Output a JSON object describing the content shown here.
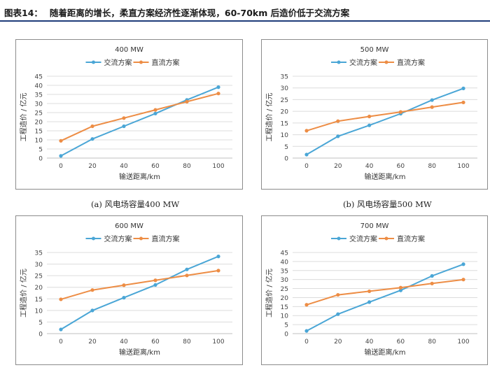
{
  "figure": {
    "label": "图表14：",
    "title": "随着距离的增长，柔直方案经济性逐渐体现，60-70km 后造价低于交流方案"
  },
  "colors": {
    "ac": "#4aa6d6",
    "dc": "#ed8d45",
    "grid": "#dcdcdc",
    "axis": "#bfbfbf"
  },
  "captions": [
    "(a) 风电场容量400 MW",
    "(b) 风电场容量500 MW"
  ],
  "chart_data": [
    {
      "type": "line",
      "title": "400 MW",
      "xlabel": "输送距离/km",
      "ylabel": "工程造价 / 亿元",
      "x": [
        0,
        20,
        40,
        60,
        80,
        100
      ],
      "ylim": [
        0,
        45
      ],
      "yticks": [
        0,
        5,
        10,
        15,
        20,
        25,
        30,
        35,
        40,
        45
      ],
      "legend": "top",
      "grid": true,
      "series": [
        {
          "name": "交流方案",
          "values": [
            1.2,
            10.5,
            17.5,
            24.5,
            32.0,
            39.0
          ]
        },
        {
          "name": "直流方案",
          "values": [
            9.5,
            17.5,
            22.0,
            26.5,
            31.0,
            35.5
          ]
        }
      ]
    },
    {
      "type": "line",
      "title": "500 MW",
      "xlabel": "输送距离/km",
      "ylabel": "工程造价 / 亿元",
      "x": [
        0,
        20,
        40,
        60,
        80,
        100
      ],
      "ylim": [
        0,
        35
      ],
      "yticks": [
        0,
        5,
        10,
        15,
        20,
        25,
        30,
        35
      ],
      "legend": "top",
      "grid": true,
      "series": [
        {
          "name": "交流方案",
          "values": [
            1.5,
            9.3,
            14.0,
            19.0,
            24.8,
            29.8
          ]
        },
        {
          "name": "直流方案",
          "values": [
            11.7,
            15.8,
            17.8,
            19.7,
            21.8,
            23.8
          ]
        }
      ]
    },
    {
      "type": "line",
      "title": "600 MW",
      "xlabel": "输送距离/km",
      "ylabel": "工程造价 / 亿元",
      "x": [
        0,
        20,
        40,
        60,
        80,
        100
      ],
      "ylim": [
        0,
        35
      ],
      "yticks": [
        0,
        5,
        10,
        15,
        20,
        25,
        30,
        35
      ],
      "legend": "top",
      "grid": true,
      "series": [
        {
          "name": "交流方案",
          "values": [
            1.8,
            10.0,
            15.5,
            21.0,
            27.7,
            33.3
          ]
        },
        {
          "name": "直流方案",
          "values": [
            14.8,
            18.8,
            20.9,
            23.0,
            25.1,
            27.2
          ]
        }
      ]
    },
    {
      "type": "line",
      "title": "700 MW",
      "xlabel": "输送距离/km",
      "ylabel": "工程造价 / 亿元",
      "x": [
        0,
        20,
        40,
        60,
        80,
        100
      ],
      "ylim": [
        0,
        45
      ],
      "yticks": [
        0,
        5,
        10,
        15,
        20,
        25,
        30,
        35,
        40,
        45
      ],
      "legend": "top",
      "grid": true,
      "series": [
        {
          "name": "交流方案",
          "values": [
            1.5,
            10.8,
            17.5,
            24.0,
            32.0,
            38.5
          ]
        },
        {
          "name": "直流方案",
          "values": [
            16.0,
            21.5,
            23.5,
            25.5,
            27.8,
            30.0
          ]
        }
      ]
    }
  ]
}
